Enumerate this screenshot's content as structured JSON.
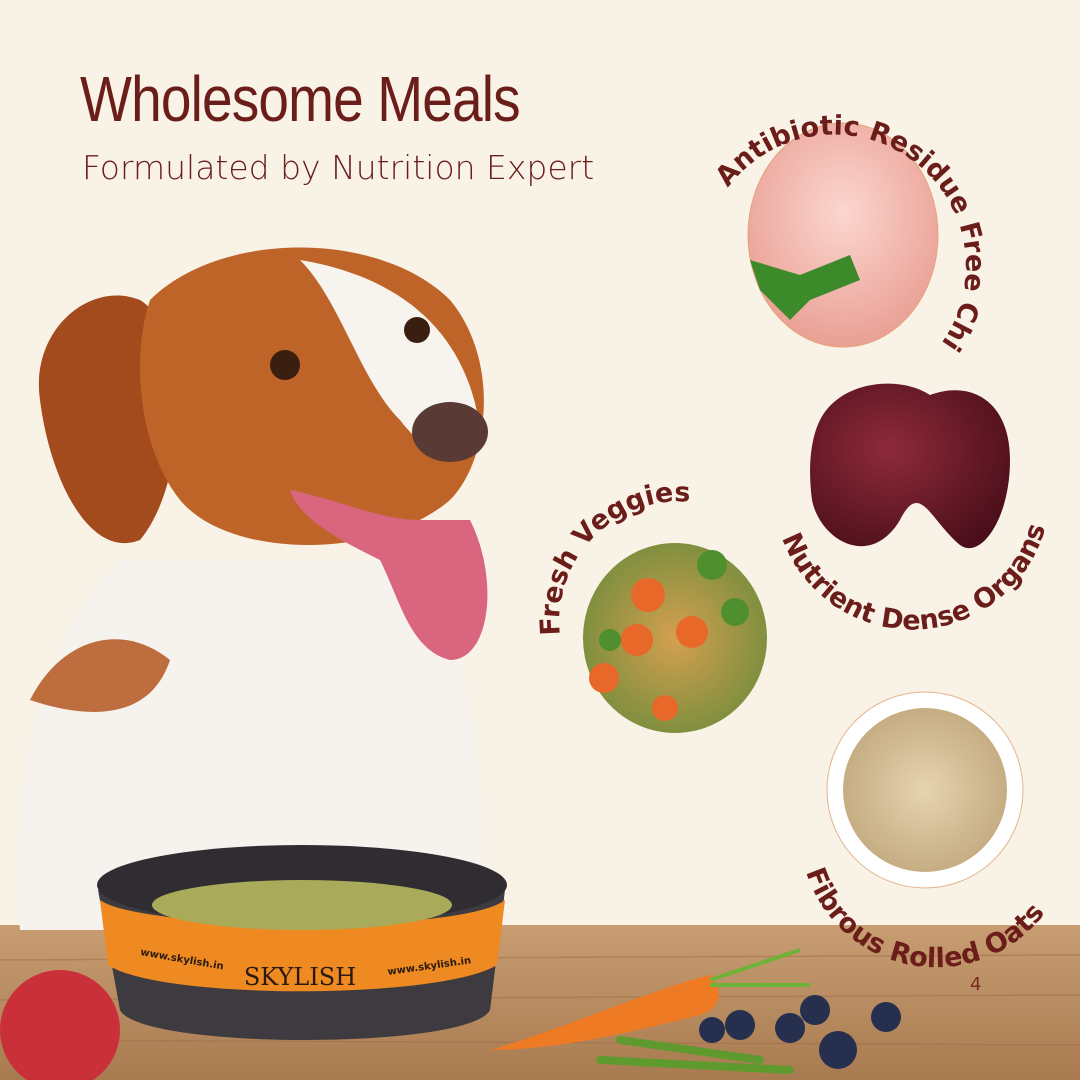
{
  "header": {
    "title": "Wholesome Meals",
    "subtitle": "Formulated by Nutrition Expert"
  },
  "ingredients": [
    {
      "label": "Antibiotic Residue Free Chicken",
      "icon": "raw-chicken-image"
    },
    {
      "label": "Nutrient Dense Organs",
      "icon": "liver-image"
    },
    {
      "label": "Fresh Veggies",
      "icon": "vegetables-image"
    },
    {
      "label": "Fibrous Rolled Oats",
      "icon": "oats-bowl-image"
    }
  ],
  "bowl": {
    "brand": "SKYLISH",
    "website": "www.skylish.in"
  },
  "page_number": "4",
  "colors": {
    "background": "#f9f2e7",
    "text": "#6b1d1a",
    "wood": "#b98a5e",
    "bowl_band": "#ef8a22"
  }
}
